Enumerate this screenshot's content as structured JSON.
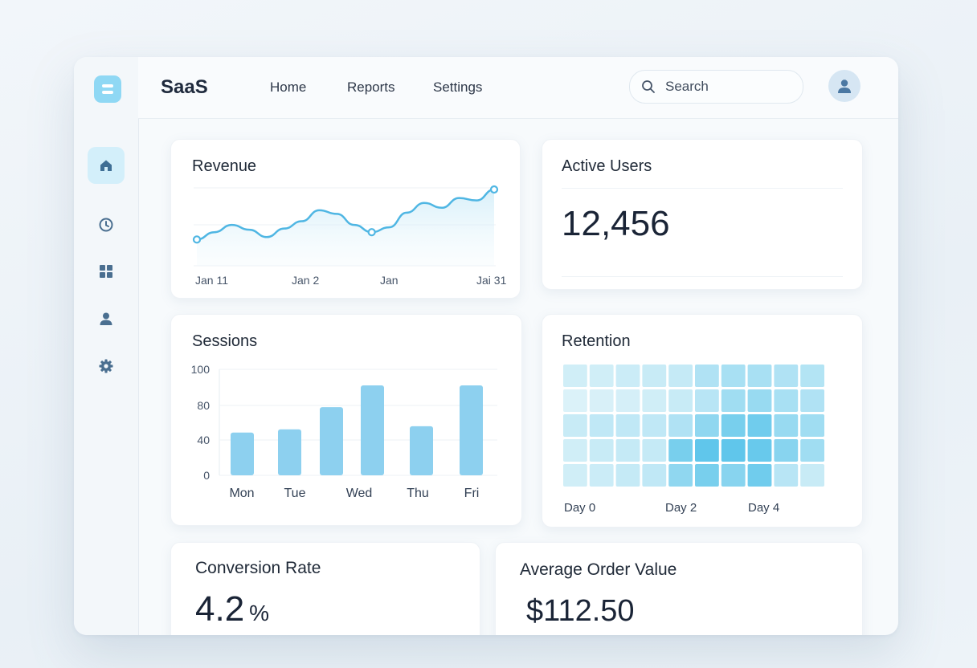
{
  "app": {
    "brand": "SaaS",
    "nav": [
      {
        "label": "Home"
      },
      {
        "label": "Reports"
      },
      {
        "label": "Settings"
      }
    ],
    "search": {
      "placeholder": "Search"
    },
    "sidebar": {
      "items": [
        {
          "icon": "home-icon",
          "active": true
        },
        {
          "icon": "clock-icon",
          "active": false
        },
        {
          "icon": "grid-icon",
          "active": false
        },
        {
          "icon": "user-icon",
          "active": false
        },
        {
          "icon": "gear-icon",
          "active": false
        }
      ]
    },
    "colors": {
      "accent": "#5cc3ea",
      "accent_line": "#4fb6e3",
      "sidebar_active": "#d3effa",
      "bar": "#8dd0ef"
    }
  },
  "cards": {
    "revenue": {
      "title": "Revenue"
    },
    "active_users": {
      "title": "Active Users",
      "value": "12,456"
    },
    "sessions": {
      "title": "Sessions"
    },
    "retention": {
      "title": "Retention"
    },
    "conversion": {
      "title": "Conversion Rate",
      "value": "4.2",
      "unit": "%"
    },
    "aov": {
      "title": "Average Order Value",
      "value": "$112.50"
    }
  },
  "chart_data": [
    {
      "type": "line",
      "title": "Revenue",
      "x_labels": [
        "Jan 11",
        "Jan 2",
        "Jan",
        "Jai 31"
      ],
      "values": [
        0.18,
        0.3,
        0.42,
        0.34,
        0.22,
        0.36,
        0.48,
        0.66,
        0.6,
        0.42,
        0.3,
        0.38,
        0.62,
        0.78,
        0.7,
        0.86,
        0.82,
        1.0
      ],
      "marked_points": [
        0,
        10,
        17
      ]
    },
    {
      "type": "bar",
      "title": "Sessions",
      "categories": [
        "Mon",
        "Tue",
        "",
        "Wed",
        "Thu",
        "Fri"
      ],
      "values": [
        57,
        60,
        81,
        102,
        63,
        102
      ],
      "y_ticks": [
        0,
        40,
        80,
        100
      ],
      "ylim": [
        0,
        100
      ]
    },
    {
      "type": "heatmap",
      "title": "Retention",
      "x_labels": [
        "Day 0",
        "Day 2",
        "Day 4"
      ],
      "values": [
        [
          0.15,
          0.15,
          0.18,
          0.2,
          0.22,
          0.35,
          0.4,
          0.4,
          0.35,
          0.33
        ],
        [
          0.08,
          0.1,
          0.12,
          0.15,
          0.2,
          0.3,
          0.45,
          0.5,
          0.4,
          0.35
        ],
        [
          0.2,
          0.25,
          0.25,
          0.25,
          0.35,
          0.55,
          0.7,
          0.75,
          0.5,
          0.45
        ],
        [
          0.15,
          0.2,
          0.22,
          0.22,
          0.7,
          0.85,
          0.85,
          0.8,
          0.6,
          0.45
        ],
        [
          0.15,
          0.18,
          0.22,
          0.25,
          0.55,
          0.7,
          0.6,
          0.75,
          0.3,
          0.2
        ]
      ]
    }
  ]
}
